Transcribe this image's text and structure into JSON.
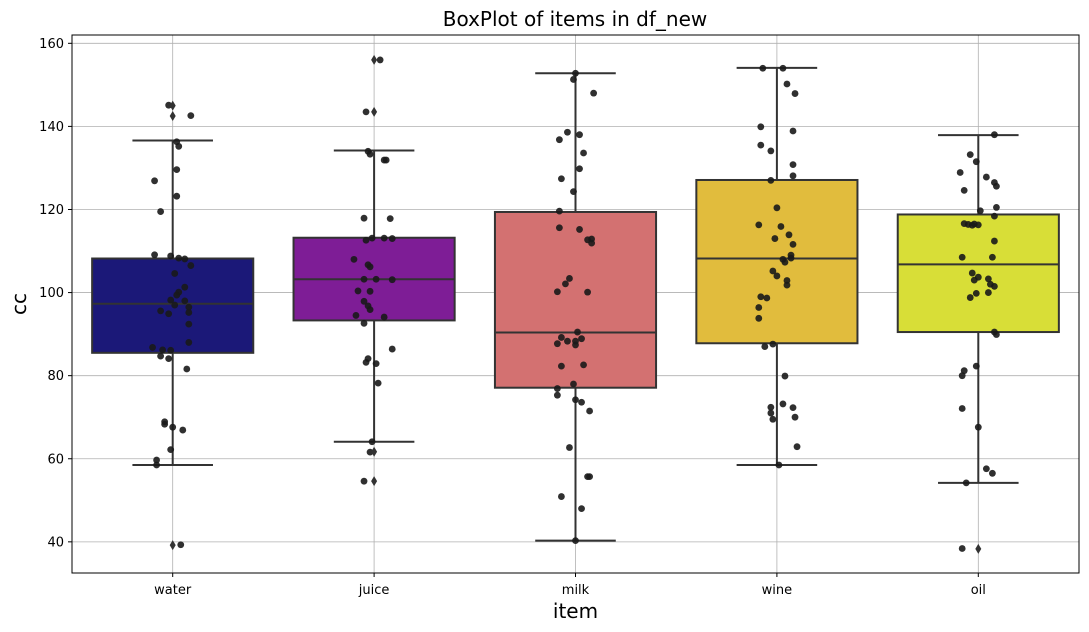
{
  "chart_data": {
    "type": "box",
    "title": "BoxPlot of items in df_new",
    "xlabel": "item",
    "ylabel": "cc",
    "categories": [
      "water",
      "juice",
      "milk",
      "wine",
      "oil"
    ],
    "ylim": [
      32.5,
      162
    ],
    "yticks": [
      40,
      60,
      80,
      100,
      120,
      140,
      160
    ],
    "grid": true,
    "colors": [
      "#1b1878",
      "#7e1d96",
      "#d37171",
      "#e1bc3d",
      "#d8de37"
    ],
    "boxes": [
      {
        "name": "water",
        "whisker_low": 58.5,
        "q1": 85.5,
        "median": 97.3,
        "q3": 108.2,
        "whisker_high": 136.6,
        "fliers": [
          145,
          142.5,
          39.2
        ]
      },
      {
        "name": "juice",
        "whisker_low": 64.1,
        "q1": 93.3,
        "median": 103.2,
        "q3": 113.2,
        "whisker_high": 134.2,
        "fliers": [
          156,
          143.5,
          61.7,
          54.6
        ]
      },
      {
        "name": "milk",
        "whisker_low": 40.3,
        "q1": 77.1,
        "median": 90.4,
        "q3": 119.4,
        "whisker_high": 152.8,
        "fliers": []
      },
      {
        "name": "wine",
        "whisker_low": 58.5,
        "q1": 87.8,
        "median": 108.2,
        "q3": 127.1,
        "whisker_high": 154.1,
        "fliers": []
      },
      {
        "name": "oil",
        "whisker_low": 54.2,
        "q1": 90.5,
        "median": 106.8,
        "q3": 118.8,
        "whisker_high": 137.9,
        "fliers": [
          38.3
        ]
      }
    ],
    "strip_points": [
      {
        "category": "water",
        "points": [
          [
            -0.02,
            145.1
          ],
          [
            0.09,
            142.6
          ],
          [
            0.02,
            136.3
          ],
          [
            0.03,
            135.2
          ],
          [
            0.02,
            129.6
          ],
          [
            -0.09,
            126.9
          ],
          [
            0.02,
            123.2
          ],
          [
            -0.06,
            119.5
          ],
          [
            -0.09,
            109.1
          ],
          [
            -0.01,
            108.8
          ],
          [
            0.03,
            108.3
          ],
          [
            0.06,
            108.1
          ],
          [
            0.09,
            106.5
          ],
          [
            0.01,
            104.6
          ],
          [
            0.06,
            101.3
          ],
          [
            0.03,
            100.1
          ],
          [
            0.02,
            99.4
          ],
          [
            -0.01,
            98.2
          ],
          [
            0.06,
            98.0
          ],
          [
            0.08,
            96.5
          ],
          [
            0.01,
            97.0
          ],
          [
            -0.06,
            95.6
          ],
          [
            -0.02,
            94.9
          ],
          [
            0.08,
            95.2
          ],
          [
            0.08,
            92.4
          ],
          [
            0.08,
            88.0
          ],
          [
            -0.1,
            86.8
          ],
          [
            -0.05,
            86.2
          ],
          [
            -0.01,
            86.1
          ],
          [
            -0.06,
            84.7
          ],
          [
            -0.02,
            84.1
          ],
          [
            0.07,
            81.6
          ],
          [
            -0.04,
            68.9
          ],
          [
            -0.04,
            68.3
          ],
          [
            0.0,
            67.6
          ],
          [
            0.05,
            66.9
          ],
          [
            -0.01,
            62.2
          ],
          [
            -0.08,
            59.7
          ],
          [
            -0.08,
            58.5
          ],
          [
            0.04,
            39.3
          ]
        ]
      },
      {
        "category": "juice",
        "points": [
          [
            0.03,
            156.0
          ],
          [
            -0.04,
            143.5
          ],
          [
            -0.03,
            134.0
          ],
          [
            -0.02,
            133.3
          ],
          [
            0.06,
            131.9
          ],
          [
            0.05,
            131.9
          ],
          [
            -0.05,
            117.9
          ],
          [
            0.08,
            117.8
          ],
          [
            -0.04,
            112.6
          ],
          [
            -0.01,
            113.1
          ],
          [
            0.05,
            113.1
          ],
          [
            0.09,
            113.0
          ],
          [
            -0.1,
            108.0
          ],
          [
            -0.03,
            106.7
          ],
          [
            -0.02,
            106.2
          ],
          [
            -0.05,
            103.2
          ],
          [
            0.01,
            103.2
          ],
          [
            0.09,
            103.1
          ],
          [
            -0.08,
            100.4
          ],
          [
            -0.02,
            100.3
          ],
          [
            -0.05,
            97.9
          ],
          [
            -0.03,
            96.8
          ],
          [
            -0.02,
            95.9
          ],
          [
            -0.09,
            94.5
          ],
          [
            0.05,
            94.1
          ],
          [
            -0.05,
            92.6
          ],
          [
            0.09,
            86.4
          ],
          [
            -0.03,
            84.1
          ],
          [
            -0.04,
            83.2
          ],
          [
            0.01,
            82.9
          ],
          [
            0.02,
            78.2
          ],
          [
            -0.01,
            64.1
          ],
          [
            -0.02,
            61.6
          ],
          [
            -0.05,
            54.6
          ]
        ]
      },
      {
        "category": "milk",
        "points": [
          [
            0.0,
            152.8
          ],
          [
            -0.01,
            151.3
          ],
          [
            0.09,
            148.0
          ],
          [
            -0.04,
            138.6
          ],
          [
            0.02,
            138.0
          ],
          [
            -0.08,
            136.8
          ],
          [
            0.04,
            133.6
          ],
          [
            0.02,
            129.8
          ],
          [
            -0.07,
            127.4
          ],
          [
            -0.01,
            124.3
          ],
          [
            -0.08,
            119.6
          ],
          [
            0.02,
            115.2
          ],
          [
            -0.08,
            115.6
          ],
          [
            0.08,
            112.9
          ],
          [
            0.06,
            112.7
          ],
          [
            0.08,
            111.9
          ],
          [
            -0.03,
            103.4
          ],
          [
            -0.05,
            102.1
          ],
          [
            -0.09,
            100.2
          ],
          [
            0.06,
            100.1
          ],
          [
            0.01,
            90.5
          ],
          [
            -0.07,
            89.2
          ],
          [
            0.03,
            88.9
          ],
          [
            -0.04,
            88.3
          ],
          [
            0.0,
            88.3
          ],
          [
            -0.09,
            87.7
          ],
          [
            0.0,
            87.4
          ],
          [
            -0.07,
            82.3
          ],
          [
            0.04,
            82.6
          ],
          [
            -0.01,
            78.0
          ],
          [
            -0.09,
            76.9
          ],
          [
            -0.09,
            75.3
          ],
          [
            0.0,
            74.2
          ],
          [
            0.03,
            73.6
          ],
          [
            0.07,
            71.5
          ],
          [
            -0.03,
            62.7
          ],
          [
            0.06,
            55.7
          ],
          [
            0.07,
            55.7
          ],
          [
            -0.07,
            50.9
          ],
          [
            0.03,
            48.0
          ],
          [
            0.0,
            40.3
          ]
        ]
      },
      {
        "category": "wine",
        "points": [
          [
            -0.07,
            154.0
          ],
          [
            0.03,
            154.0
          ],
          [
            0.05,
            150.2
          ],
          [
            0.09,
            147.9
          ],
          [
            0.08,
            138.9
          ],
          [
            -0.08,
            139.9
          ],
          [
            -0.08,
            135.5
          ],
          [
            -0.03,
            134.1
          ],
          [
            0.08,
            130.8
          ],
          [
            0.08,
            128.1
          ],
          [
            -0.03,
            127.0
          ],
          [
            0.0,
            120.4
          ],
          [
            -0.09,
            116.3
          ],
          [
            0.02,
            115.9
          ],
          [
            0.06,
            113.9
          ],
          [
            -0.01,
            113.0
          ],
          [
            0.08,
            111.6
          ],
          [
            0.07,
            109.0
          ],
          [
            0.07,
            108.3
          ],
          [
            0.03,
            108.0
          ],
          [
            0.04,
            107.3
          ],
          [
            -0.02,
            105.2
          ],
          [
            0.0,
            104.0
          ],
          [
            0.05,
            102.9
          ],
          [
            0.05,
            101.8
          ],
          [
            -0.08,
            99.0
          ],
          [
            -0.05,
            98.7
          ],
          [
            -0.09,
            96.4
          ],
          [
            -0.09,
            93.8
          ],
          [
            -0.06,
            87.0
          ],
          [
            -0.02,
            87.6
          ],
          [
            0.04,
            79.9
          ],
          [
            -0.03,
            72.4
          ],
          [
            0.03,
            73.2
          ],
          [
            0.08,
            72.3
          ],
          [
            -0.03,
            71.0
          ],
          [
            -0.02,
            69.5
          ],
          [
            0.09,
            70.0
          ],
          [
            0.1,
            62.9
          ],
          [
            0.01,
            58.5
          ]
        ]
      },
      {
        "category": "oil",
        "points": [
          [
            0.08,
            138.0
          ],
          [
            -0.04,
            133.2
          ],
          [
            -0.01,
            131.5
          ],
          [
            0.04,
            127.8
          ],
          [
            -0.09,
            128.9
          ],
          [
            0.08,
            126.5
          ],
          [
            -0.07,
            124.6
          ],
          [
            0.09,
            125.6
          ],
          [
            0.09,
            120.5
          ],
          [
            0.01,
            119.7
          ],
          [
            0.08,
            118.4
          ],
          [
            -0.05,
            116.4
          ],
          [
            -0.02,
            116.5
          ],
          [
            -0.03,
            116.2
          ],
          [
            0.0,
            116.3
          ],
          [
            -0.07,
            116.6
          ],
          [
            0.08,
            112.4
          ],
          [
            -0.08,
            108.5
          ],
          [
            0.07,
            108.5
          ],
          [
            -0.03,
            104.7
          ],
          [
            0.0,
            103.7
          ],
          [
            0.05,
            103.3
          ],
          [
            -0.02,
            103.0
          ],
          [
            0.06,
            102.0
          ],
          [
            0.08,
            101.5
          ],
          [
            0.05,
            100.0
          ],
          [
            -0.01,
            99.8
          ],
          [
            -0.04,
            98.8
          ],
          [
            0.08,
            90.5
          ],
          [
            0.09,
            89.9
          ],
          [
            -0.01,
            82.3
          ],
          [
            -0.07,
            81.2
          ],
          [
            -0.08,
            80.0
          ],
          [
            0.0,
            67.6
          ],
          [
            -0.08,
            72.1
          ],
          [
            0.04,
            57.6
          ],
          [
            0.07,
            56.5
          ],
          [
            -0.06,
            54.2
          ],
          [
            -0.08,
            38.4
          ]
        ]
      }
    ]
  }
}
